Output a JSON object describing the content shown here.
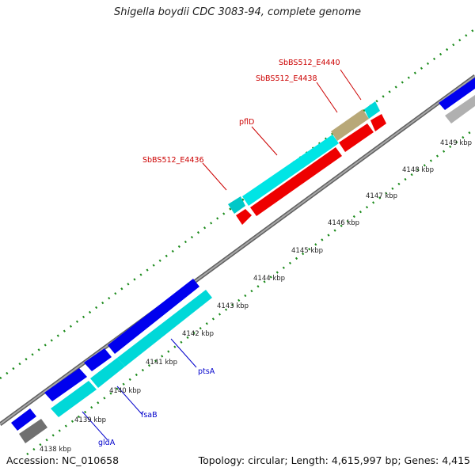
{
  "title": "Shigella boydii CDC 3083-94, complete genome",
  "footer": {
    "accession": "Accession: NC_010658",
    "summary": "Topology: circular; Length: 4,615,997 bp; Genes: 4,415"
  },
  "colors": {
    "backbone": "#808080",
    "forward_gene": "#0000ee",
    "forward_cds": "#00e5e5",
    "reverse_cds": "#ee0000",
    "pseudo": "#b8a878",
    "other": "#808080",
    "tick": "#1a8a1a",
    "label_forward": "#0000cc",
    "label_reverse": "#cc0000"
  },
  "tick_labels": [
    "4138 kbp",
    "4139 kbp",
    "4140 kbp",
    "4141 kbp",
    "4142 kbp",
    "4143 kbp",
    "4144 kbp",
    "4145 kbp",
    "4146 kbp",
    "4147 kbp",
    "4148 kbp",
    "4149 kbp"
  ],
  "gene_labels": {
    "reverse": [
      "SbBS512_E4440",
      "SbBS512_E4438",
      "pflD",
      "SbBS512_E4436"
    ],
    "forward": [
      "ptsA",
      "fsaB",
      "gldA"
    ]
  }
}
